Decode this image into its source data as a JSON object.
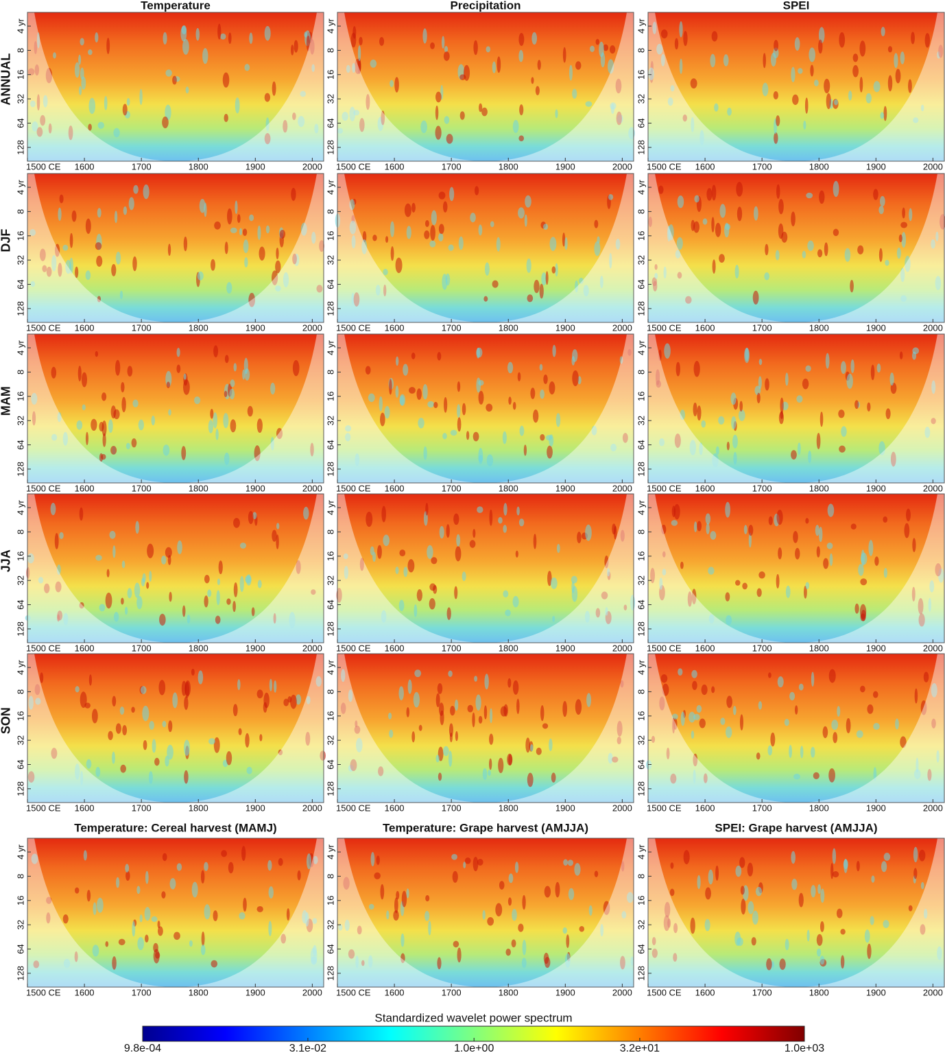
{
  "figure": {
    "column_titles": [
      "Temperature",
      "Precipitation",
      "SPEI"
    ],
    "row_labels": [
      "ANNUAL",
      "DJF",
      "MAM",
      "JJA",
      "SON"
    ],
    "bottom_titles": [
      "Temperature: Cereal harvest (MAMJ)",
      "Temperature: Grape harvest (AMJJA)",
      "SPEI: Grape harvest (AMJJA)"
    ],
    "xlim": [
      1500,
      2020
    ],
    "xticks": [
      {
        "value": 1500,
        "label": "1500 CE"
      },
      1600,
      1700,
      1800,
      1900,
      2000
    ],
    "ylim": [
      2.7,
      190
    ],
    "yscale": "log",
    "yticks": [
      {
        "value": 4,
        "label": "4 yr"
      },
      8,
      16,
      32,
      64,
      128
    ],
    "colorbar": {
      "title": "Standardized wavelet power spectrum",
      "scale": "log",
      "lim": [
        0.00098,
        1000
      ],
      "ticks": [
        {
          "value": 0.00098,
          "label": "9.8e-04"
        },
        {
          "value": 0.031,
          "label": "3.1e-02"
        },
        {
          "value": 1.0,
          "label": "1.0e+00"
        },
        {
          "value": 32,
          "label": "3.2e+01"
        },
        {
          "value": 1000,
          "label": "1.0e+03"
        }
      ]
    }
  }
}
